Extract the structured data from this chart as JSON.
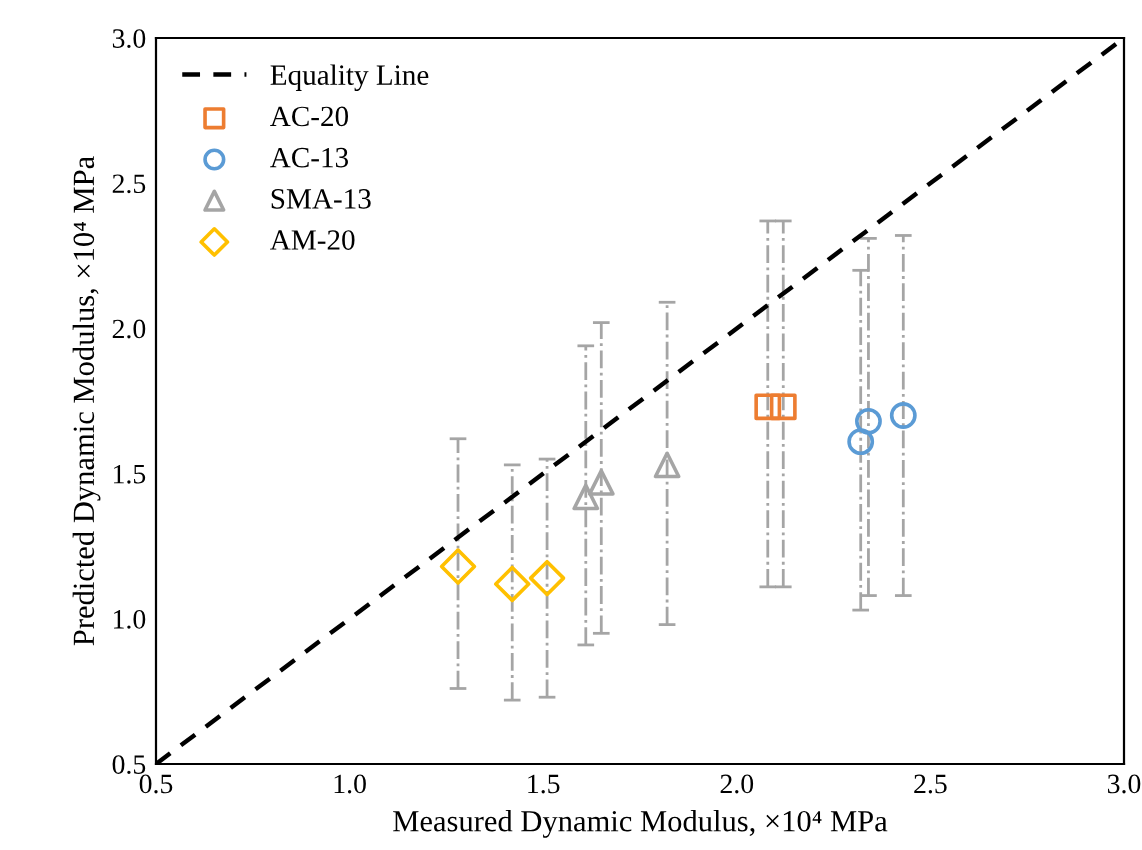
{
  "chart_data": {
    "type": "scatter",
    "xlabel": "Measured Dynamic Modulus, ×10⁴ MPa",
    "ylabel": "Predicted Dynamic Modulus, ×10⁴ MPa",
    "xlim": [
      0.5,
      3.0
    ],
    "ylim": [
      0.5,
      3.0
    ],
    "xticks": [
      {
        "value": 0.5,
        "label": "0.5"
      },
      {
        "value": 1.0,
        "label": "1.0"
      },
      {
        "value": 1.5,
        "label": "1.5"
      },
      {
        "value": 2.0,
        "label": "2.0"
      },
      {
        "value": 2.5,
        "label": "2.5"
      },
      {
        "value": 3.0,
        "label": "3.0"
      }
    ],
    "yticks": [
      {
        "value": 0.5,
        "label": "0.5"
      },
      {
        "value": 1.0,
        "label": "1.0"
      },
      {
        "value": 1.5,
        "label": "1.5"
      },
      {
        "value": 2.0,
        "label": "2.0"
      },
      {
        "value": 2.5,
        "label": "2.5"
      },
      {
        "value": 3.0,
        "label": "3.0"
      }
    ],
    "grid": false,
    "legend": "top left",
    "series": [
      {
        "name": "Equality Line",
        "type": "line",
        "color": "#000000",
        "line_style": "dashed",
        "marker": "none",
        "x": [
          0.5,
          3.0
        ],
        "values": [
          0.5,
          3.0
        ]
      },
      {
        "name": "AC-20",
        "color": "#ed7d31",
        "marker": "square",
        "x": [
          2.08,
          2.12
        ],
        "values": [
          1.73,
          1.73
        ],
        "errors": [
          [
            1.11,
            2.37
          ],
          [
            1.11,
            2.37
          ]
        ]
      },
      {
        "name": "AC-13",
        "color": "#5b9bd5",
        "marker": "circle",
        "x": [
          2.32,
          2.34,
          2.43
        ],
        "values": [
          1.61,
          1.68,
          1.7
        ],
        "errors": [
          [
            1.03,
            2.2
          ],
          [
            1.08,
            2.31
          ],
          [
            1.08,
            2.32
          ]
        ]
      },
      {
        "name": "SMA-13",
        "color": "#a5a5a5",
        "marker": "triangle",
        "x": [
          1.61,
          1.65,
          1.82
        ],
        "values": [
          1.42,
          1.47,
          1.53
        ],
        "errors": [
          [
            0.91,
            1.94
          ],
          [
            0.95,
            2.02
          ],
          [
            0.98,
            2.09
          ]
        ]
      },
      {
        "name": "AM-20",
        "color": "#ffc000",
        "marker": "diamond",
        "x": [
          1.28,
          1.42,
          1.51
        ],
        "values": [
          1.18,
          1.12,
          1.14
        ],
        "errors": [
          [
            0.76,
            1.62
          ],
          [
            0.72,
            1.53
          ],
          [
            0.73,
            1.55
          ]
        ]
      }
    ]
  }
}
